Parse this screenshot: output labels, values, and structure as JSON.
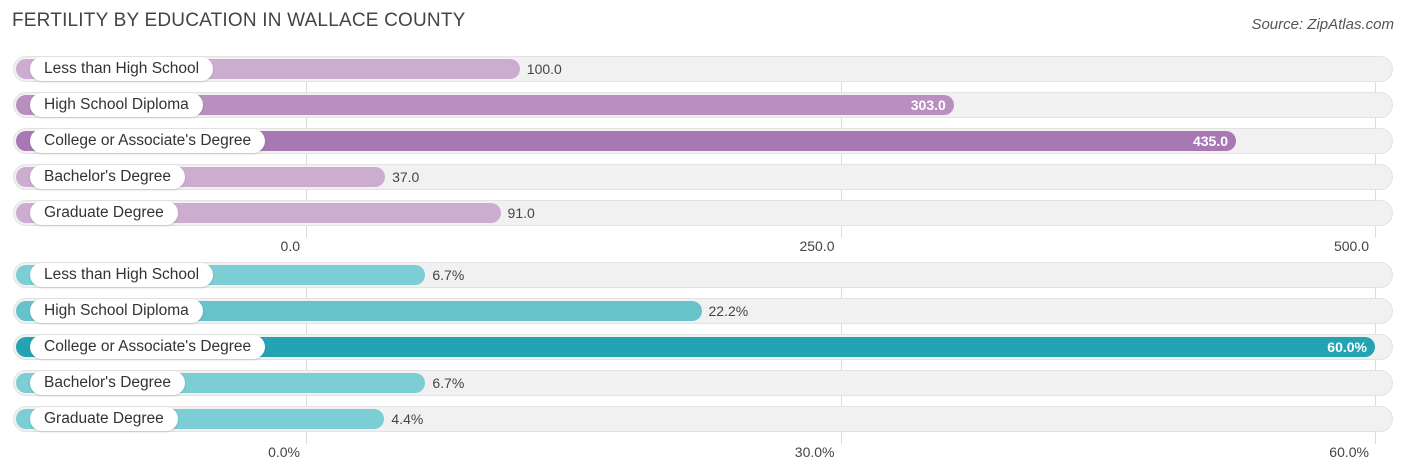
{
  "title": "FERTILITY BY EDUCATION IN WALLACE COUNTY",
  "source": "Source: ZipAtlas.com",
  "chart_data": [
    {
      "type": "bar",
      "orientation": "horizontal",
      "categories": [
        "Less than High School",
        "High School Diploma",
        "College or Associate's Degree",
        "Bachelor's Degree",
        "Graduate Degree"
      ],
      "values": [
        100.0,
        303.0,
        435.0,
        37.0,
        91.0
      ],
      "value_labels": [
        "100.0",
        "303.0",
        "435.0",
        "37.0",
        "91.0"
      ],
      "xlim": [
        0,
        500
      ],
      "ticks": [
        "0.0",
        "250.0",
        "500.0"
      ],
      "colors": [
        "#ccadd0",
        "#b98fc0",
        "#a878b4",
        "#ccadd0",
        "#ccadd0"
      ],
      "grid": true
    },
    {
      "type": "bar",
      "orientation": "horizontal",
      "categories": [
        "Less than High School",
        "High School Diploma",
        "College or Associate's Degree",
        "Bachelor's Degree",
        "Graduate Degree"
      ],
      "values": [
        6.7,
        22.2,
        60.0,
        6.7,
        4.4
      ],
      "value_labels": [
        "6.7%",
        "22.2%",
        "60.0%",
        "6.7%",
        "4.4%"
      ],
      "xlim": [
        0,
        60
      ],
      "ticks": [
        "0.0%",
        "30.0%",
        "60.0%"
      ],
      "colors": [
        "#7ccdd4",
        "#66c2cb",
        "#24a3b3",
        "#7ccdd4",
        "#7ccdd4"
      ],
      "grid": true
    }
  ]
}
